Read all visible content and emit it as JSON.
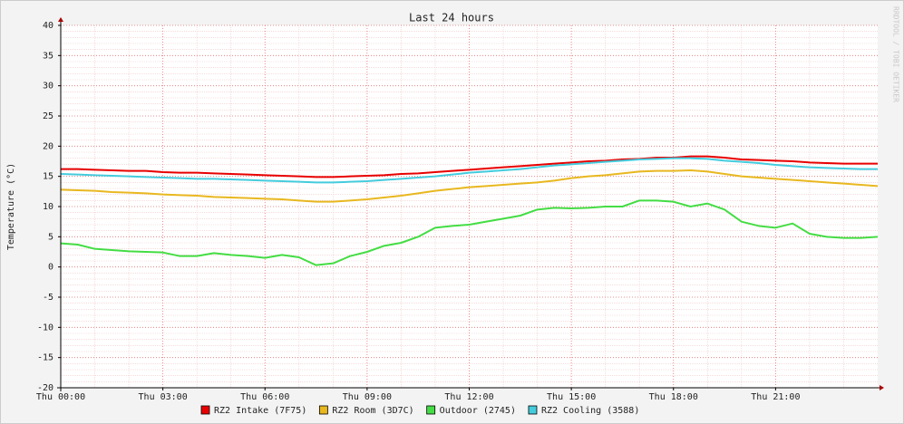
{
  "chart_data": {
    "type": "line",
    "title": "Last 24 hours",
    "y_label": "Temperature (°C)",
    "watermark": "RRDTOOL / TOBI OETIKER",
    "x": [
      0,
      0.5,
      1,
      1.5,
      2,
      2.5,
      3,
      3.5,
      4,
      4.5,
      5,
      5.5,
      6,
      6.5,
      7,
      7.5,
      8,
      8.5,
      9,
      9.5,
      10,
      10.5,
      11,
      11.5,
      12,
      12.5,
      13,
      13.5,
      14,
      14.5,
      15,
      15.5,
      16,
      16.5,
      17,
      17.5,
      18,
      18.5,
      19,
      19.5,
      20,
      20.5,
      21,
      21.5,
      22,
      22.5,
      23,
      23.5,
      24
    ],
    "xlim": [
      0,
      24
    ],
    "xticks": [
      {
        "value": 0,
        "label": "Thu 00:00"
      },
      {
        "value": 3,
        "label": "Thu 03:00"
      },
      {
        "value": 6,
        "label": "Thu 06:00"
      },
      {
        "value": 9,
        "label": "Thu 09:00"
      },
      {
        "value": 12,
        "label": "Thu 12:00"
      },
      {
        "value": 15,
        "label": "Thu 15:00"
      },
      {
        "value": 18,
        "label": "Thu 18:00"
      },
      {
        "value": 21,
        "label": "Thu 21:00"
      }
    ],
    "ylim": [
      -20,
      40
    ],
    "yticks": [
      -20,
      -15,
      -10,
      -5,
      0,
      5,
      10,
      15,
      20,
      25,
      30,
      35,
      40
    ],
    "grid": true,
    "series": [
      {
        "name": "RZ2 Intake (7F75)",
        "color": "#e80000",
        "values": [
          16.2,
          16.2,
          16.1,
          16.0,
          15.9,
          15.9,
          15.7,
          15.6,
          15.6,
          15.5,
          15.4,
          15.3,
          15.2,
          15.1,
          15.0,
          14.9,
          14.9,
          15.0,
          15.1,
          15.2,
          15.4,
          15.5,
          15.7,
          15.9,
          16.1,
          16.3,
          16.5,
          16.7,
          16.9,
          17.1,
          17.3,
          17.5,
          17.6,
          17.8,
          17.9,
          18.1,
          18.1,
          18.3,
          18.3,
          18.1,
          17.8,
          17.7,
          17.6,
          17.5,
          17.3,
          17.2,
          17.1,
          17.1,
          17.1
        ]
      },
      {
        "name": "RZ2 Room (3D7C)",
        "color": "#e8b820",
        "values": [
          12.8,
          12.7,
          12.6,
          12.4,
          12.3,
          12.2,
          12.0,
          11.9,
          11.8,
          11.6,
          11.5,
          11.4,
          11.3,
          11.2,
          11.0,
          10.8,
          10.8,
          11.0,
          11.2,
          11.5,
          11.8,
          12.2,
          12.6,
          12.9,
          13.2,
          13.4,
          13.6,
          13.8,
          14.0,
          14.3,
          14.7,
          15.0,
          15.2,
          15.5,
          15.8,
          15.9,
          15.9,
          16.0,
          15.8,
          15.4,
          15.0,
          14.8,
          14.6,
          14.4,
          14.2,
          14.0,
          13.8,
          13.6,
          13.4
        ]
      },
      {
        "name": "Outdoor (2745)",
        "color": "#44dd44",
        "values": [
          3.9,
          3.7,
          3.0,
          2.8,
          2.6,
          2.5,
          2.4,
          1.8,
          1.8,
          2.3,
          2.0,
          1.8,
          1.5,
          2.0,
          1.6,
          0.3,
          0.6,
          1.8,
          2.5,
          3.5,
          4.0,
          5.0,
          6.5,
          6.8,
          7.0,
          7.5,
          8.0,
          8.5,
          9.5,
          9.8,
          9.7,
          9.8,
          10.0,
          10.0,
          11.0,
          11.0,
          10.8,
          10.0,
          10.5,
          9.5,
          7.5,
          6.8,
          6.5,
          7.2,
          5.5,
          5.0,
          4.8,
          4.8,
          5.0
        ]
      },
      {
        "name": "RZ2 Cooling (3588)",
        "color": "#44ccdd",
        "values": [
          15.4,
          15.3,
          15.2,
          15.1,
          15.0,
          14.9,
          14.8,
          14.7,
          14.6,
          14.6,
          14.5,
          14.4,
          14.3,
          14.2,
          14.1,
          14.0,
          14.0,
          14.1,
          14.2,
          14.4,
          14.6,
          14.8,
          15.0,
          15.3,
          15.6,
          15.8,
          16.0,
          16.2,
          16.5,
          16.8,
          17.0,
          17.2,
          17.4,
          17.6,
          17.8,
          17.9,
          18.0,
          18.0,
          17.9,
          17.6,
          17.4,
          17.2,
          16.9,
          16.7,
          16.5,
          16.4,
          16.3,
          16.2,
          16.2
        ]
      }
    ]
  }
}
